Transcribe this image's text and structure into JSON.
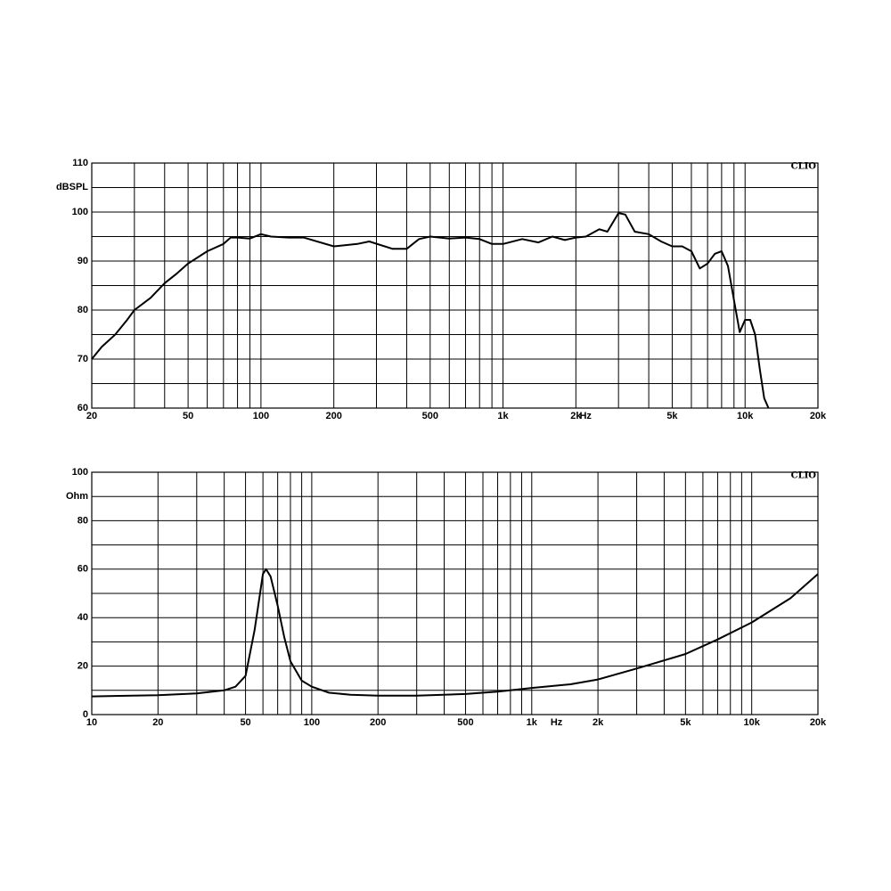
{
  "chart_data": [
    {
      "type": "line",
      "log_x": true,
      "grid": true,
      "ylabel": "dBSPL",
      "xlabel": "Hz",
      "annotation": "CLIO",
      "xlim": [
        20,
        20000
      ],
      "ylim": [
        60,
        110
      ],
      "xticks": [
        20,
        50,
        100,
        200,
        500,
        {
          "value": 1000,
          "label": "1k"
        },
        {
          "value": 2000,
          "label": "2k"
        },
        {
          "value": 5000,
          "label": "5k"
        },
        {
          "value": 10000,
          "label": "10k"
        },
        {
          "value": 20000,
          "label": "20k"
        }
      ],
      "xminor": [
        30,
        40,
        60,
        70,
        80,
        90,
        300,
        400,
        600,
        700,
        800,
        900,
        3000,
        4000,
        6000,
        7000,
        8000,
        9000
      ],
      "yticks": [
        60,
        70,
        80,
        90,
        100,
        110
      ],
      "yminor": [
        65,
        75,
        85,
        95,
        105
      ],
      "series": [
        {
          "color": "#000000",
          "x": [
            20,
            22,
            25,
            28,
            30,
            35,
            40,
            45,
            50,
            60,
            70,
            75,
            80,
            90,
            100,
            110,
            130,
            150,
            200,
            250,
            280,
            350,
            400,
            450,
            500,
            600,
            700,
            800,
            900,
            1000,
            1200,
            1400,
            1600,
            1800,
            2000,
            2200,
            2500,
            2700,
            3000,
            3200,
            3500,
            4000,
            4500,
            5000,
            5500,
            6000,
            6500,
            7000,
            7500,
            8000,
            8500,
            9000,
            9500,
            10000,
            10500,
            11000,
            11500,
            12000,
            12500
          ],
          "values": [
            70,
            72.5,
            75,
            78,
            80,
            82.5,
            85.5,
            87.5,
            89.5,
            92,
            93.5,
            94.8,
            94.8,
            94.6,
            95.5,
            95,
            94.8,
            94.8,
            93,
            93.5,
            94,
            92.5,
            92.5,
            94.5,
            95,
            94.6,
            94.8,
            94.5,
            93.5,
            93.5,
            94.5,
            93.8,
            95,
            94.3,
            94.8,
            95,
            96.5,
            96,
            99.8,
            99.5,
            96,
            95.5,
            94,
            93,
            93,
            92,
            88.5,
            89.5,
            91.5,
            92,
            89,
            82,
            75.5,
            78,
            78,
            75,
            68,
            62,
            60
          ]
        }
      ]
    },
    {
      "type": "line",
      "log_x": true,
      "grid": true,
      "ylabel": "Ohm",
      "xlabel": "Hz",
      "annotation": "CLIO",
      "xlim": [
        10,
        20000
      ],
      "ylim": [
        0,
        100
      ],
      "xticks": [
        10,
        20,
        50,
        100,
        200,
        500,
        {
          "value": 1000,
          "label": "1k"
        },
        {
          "value": 2000,
          "label": "2k"
        },
        {
          "value": 5000,
          "label": "5k"
        },
        {
          "value": 10000,
          "label": "10k"
        },
        {
          "value": 20000,
          "label": "20k"
        }
      ],
      "xminor": [
        30,
        40,
        60,
        70,
        80,
        90,
        300,
        400,
        600,
        700,
        800,
        900,
        3000,
        4000,
        6000,
        7000,
        8000,
        9000
      ],
      "yticks": [
        0,
        20,
        40,
        60,
        80,
        100
      ],
      "yminor": [
        10,
        30,
        50,
        70,
        90
      ],
      "series": [
        {
          "color": "#000000",
          "x": [
            10,
            20,
            30,
            40,
            45,
            50,
            55,
            60,
            62,
            65,
            70,
            75,
            80,
            90,
            100,
            120,
            150,
            200,
            300,
            500,
            700,
            1000,
            1500,
            2000,
            3000,
            5000,
            7000,
            10000,
            15000,
            20000
          ],
          "values": [
            7.5,
            8,
            8.7,
            10,
            11.5,
            16,
            35,
            58,
            60,
            57,
            45,
            32,
            22,
            14,
            11.5,
            9,
            8.2,
            7.8,
            7.8,
            8.5,
            9.5,
            11,
            12.5,
            14.5,
            19,
            25,
            31,
            38,
            48,
            58
          ]
        }
      ]
    }
  ]
}
